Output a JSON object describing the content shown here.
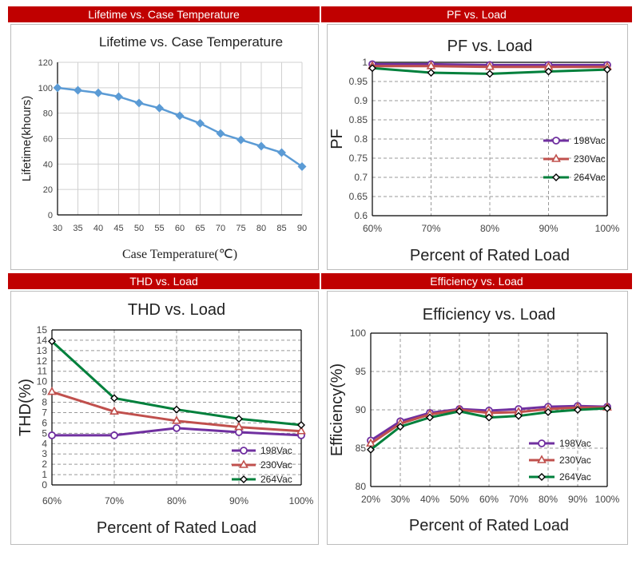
{
  "chart_data": [
    {
      "id": "lifetime",
      "panel_title": "Lifetime vs. Case Temperature",
      "type": "line",
      "title": "Lifetime vs. Case Temperature",
      "xlabel": "Case Temperature(℃)",
      "ylabel": "Lifetime(khours)",
      "x": [
        30,
        35,
        40,
        45,
        50,
        55,
        60,
        65,
        70,
        75,
        80,
        85,
        90
      ],
      "xticks": [
        30,
        35,
        40,
        45,
        50,
        55,
        60,
        65,
        70,
        75,
        80,
        85,
        90
      ],
      "ylim": [
        0,
        120
      ],
      "yticks": [
        0,
        20,
        40,
        60,
        80,
        100,
        120
      ],
      "grid": true,
      "legend": null,
      "series": [
        {
          "values": [
            100,
            98,
            96,
            93,
            88,
            84,
            78,
            72,
            64,
            59,
            54,
            49,
            38
          ],
          "color": "#5b9bd5",
          "marker": "diamond"
        }
      ]
    },
    {
      "id": "pf",
      "panel_title": "PF vs. Load",
      "type": "line",
      "title": "PF vs. Load",
      "xlabel": "Percent of Rated Load",
      "ylabel": "PF",
      "categories": [
        "60%",
        "70%",
        "80%",
        "90%",
        "100%"
      ],
      "ylim": [
        0.6,
        1.0
      ],
      "yticks": [
        "0.6",
        "0.65",
        "0.7",
        "0.75",
        "0.8",
        "0.85",
        "0.9",
        "0.95",
        "1"
      ],
      "grid": true,
      "legend": "right",
      "series": [
        {
          "name": "198Vac",
          "values": [
            0.995,
            0.995,
            0.993,
            0.993,
            0.993
          ],
          "color": "#7030a0",
          "marker": "circle"
        },
        {
          "name": "230Vac",
          "values": [
            0.99,
            0.99,
            0.988,
            0.988,
            0.988
          ],
          "color": "#c0504d",
          "marker": "triangle"
        },
        {
          "name": "264Vac",
          "values": [
            0.985,
            0.973,
            0.97,
            0.976,
            0.981
          ],
          "color": "#00803c",
          "marker": "diamond"
        }
      ]
    },
    {
      "id": "thd",
      "panel_title": "THD vs. Load",
      "type": "line",
      "title": "THD vs. Load",
      "xlabel": "Percent of Rated Load",
      "ylabel": "THD(%)",
      "categories": [
        "60%",
        "70%",
        "80%",
        "90%",
        "100%"
      ],
      "ylim": [
        0,
        15
      ],
      "yticks": [
        0,
        1,
        2,
        3,
        4,
        5,
        6,
        7,
        8,
        9,
        10,
        11,
        12,
        13,
        14,
        15
      ],
      "grid": true,
      "legend": "bottom-right",
      "series": [
        {
          "name": "198Vac",
          "values": [
            4.8,
            4.8,
            5.5,
            5.1,
            4.8
          ],
          "color": "#7030a0",
          "marker": "circle"
        },
        {
          "name": "230Vac",
          "values": [
            9.0,
            7.1,
            6.2,
            5.6,
            5.2
          ],
          "color": "#c0504d",
          "marker": "triangle"
        },
        {
          "name": "264Vac",
          "values": [
            13.9,
            8.4,
            7.3,
            6.4,
            5.8
          ],
          "color": "#00803c",
          "marker": "diamond"
        }
      ]
    },
    {
      "id": "eff",
      "panel_title": "Efficiency vs. Load",
      "type": "line",
      "title": "Efficiency vs. Load",
      "xlabel": "Percent of Rated Load",
      "ylabel": "Efficiency(%)",
      "categories": [
        "20%",
        "30%",
        "40%",
        "50%",
        "60%",
        "70%",
        "80%",
        "90%",
        "100%"
      ],
      "ylim": [
        80,
        100
      ],
      "yticks": [
        80,
        85,
        90,
        95,
        100
      ],
      "grid": true,
      "legend": "bottom-center",
      "series": [
        {
          "name": "198Vac",
          "values": [
            86.0,
            88.5,
            89.6,
            90.1,
            89.9,
            90.1,
            90.4,
            90.5,
            90.4
          ],
          "color": "#7030a0",
          "marker": "circle"
        },
        {
          "name": "230Vac",
          "values": [
            85.6,
            88.2,
            89.4,
            90.0,
            89.6,
            89.7,
            90.1,
            90.3,
            90.3
          ],
          "color": "#c0504d",
          "marker": "triangle"
        },
        {
          "name": "264Vac",
          "values": [
            84.8,
            87.8,
            89.0,
            89.8,
            89.0,
            89.2,
            89.7,
            90.0,
            90.2
          ],
          "color": "#00803c",
          "marker": "diamond"
        }
      ]
    }
  ]
}
